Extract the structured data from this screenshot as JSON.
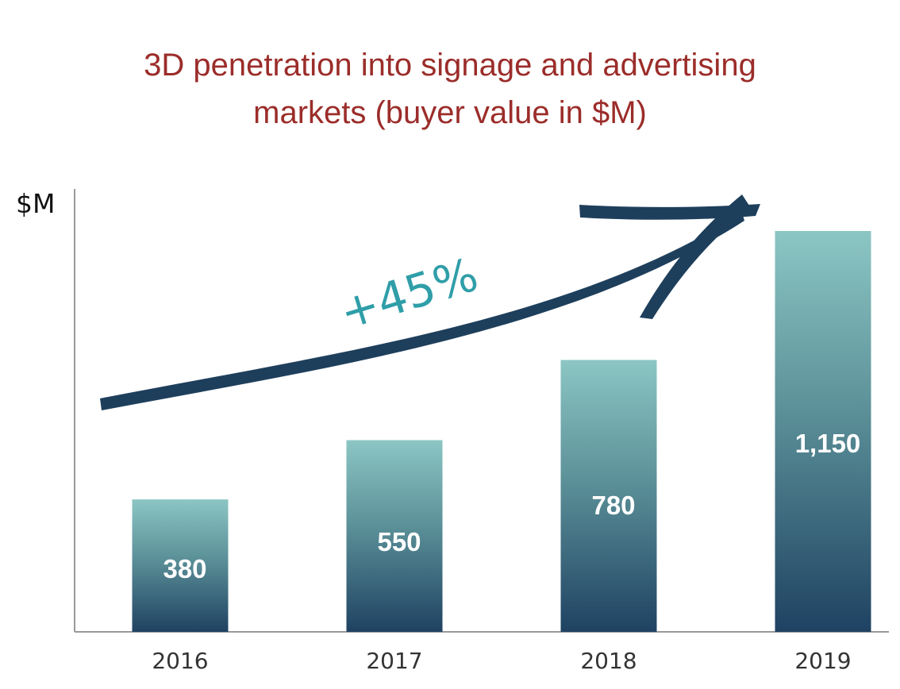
{
  "chart_data": {
    "type": "bar",
    "title": "3D penetration into signage and advertising markets (buyer value in $M)",
    "title_lines": [
      "3D penetration into signage and advertising",
      "markets (buyer value in $M)"
    ],
    "xlabel": "",
    "ylabel": "$M",
    "categories": [
      "2016",
      "2017",
      "2018",
      "2019"
    ],
    "values": [
      380,
      550,
      780,
      1150
    ],
    "data_labels": [
      "380",
      "550",
      "780",
      "1,150"
    ],
    "ylim": [
      0,
      1250
    ],
    "grid": false,
    "legend": "none",
    "annotations": [
      {
        "text": "+45%",
        "kind": "growth-arrow"
      }
    ],
    "colors": {
      "title": "#9b2d2a",
      "bar_top": "#8cc6c4",
      "bar_bottom": "#1f4262",
      "arrow": "#1e3f5c",
      "annotation": "#2f9ea8",
      "axis": "#999999"
    }
  }
}
